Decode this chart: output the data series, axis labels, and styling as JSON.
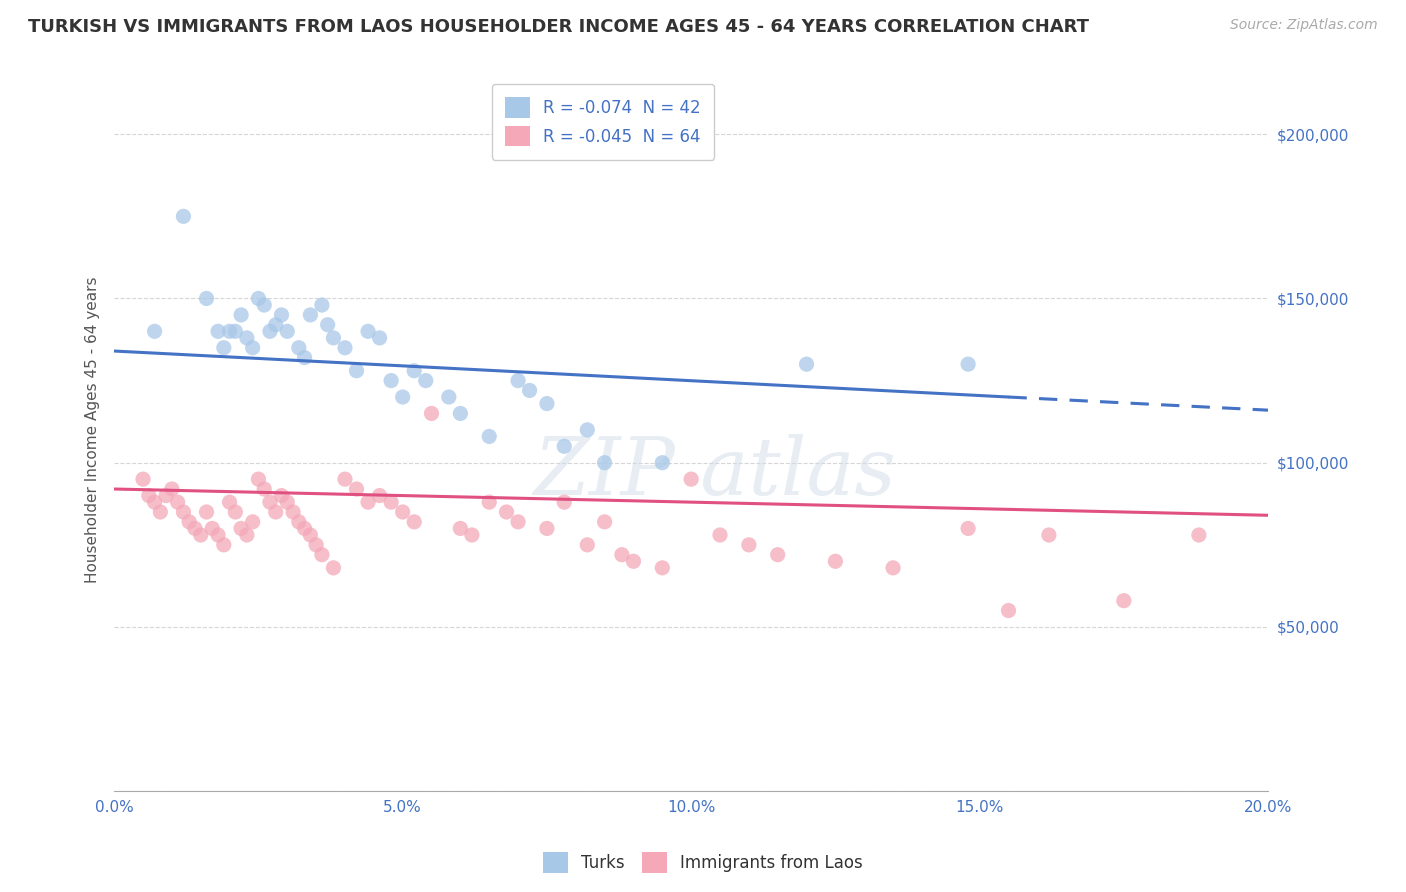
{
  "title": "TURKISH VS IMMIGRANTS FROM LAOS HOUSEHOLDER INCOME AGES 45 - 64 YEARS CORRELATION CHART",
  "source": "Source: ZipAtlas.com",
  "ylabel": "Householder Income Ages 45 - 64 years",
  "xlim": [
    0.0,
    0.2
  ],
  "ylim": [
    0,
    220000
  ],
  "yticks": [
    0,
    50000,
    100000,
    150000,
    200000
  ],
  "ytick_labels": [
    "",
    "$50,000",
    "$100,000",
    "$150,000",
    "$200,000"
  ],
  "xticks": [
    0.0,
    0.05,
    0.1,
    0.15,
    0.2
  ],
  "xtick_labels": [
    "0.0%",
    "5.0%",
    "10.0%",
    "15.0%",
    "20.0%"
  ],
  "legend_turks": "R = -0.074  N = 42",
  "legend_laos": "R = -0.045  N = 64",
  "legend_label_turks": "Turks",
  "legend_label_laos": "Immigrants from Laos",
  "color_turks": "#a8c8e8",
  "color_laos": "#f4a8b8",
  "color_turks_line": "#4472c4",
  "color_laos_line": "#e05080",
  "color_text": "#4472c4",
  "background_color": "#ffffff",
  "grid_color": "#cccccc",
  "R_turks": -0.074,
  "R_laos": -0.045,
  "N_turks": 42,
  "N_laos": 64,
  "turks_x": [
    0.007,
    0.012,
    0.016,
    0.018,
    0.019,
    0.02,
    0.021,
    0.022,
    0.023,
    0.024,
    0.025,
    0.026,
    0.027,
    0.028,
    0.029,
    0.03,
    0.032,
    0.033,
    0.034,
    0.036,
    0.037,
    0.038,
    0.04,
    0.042,
    0.044,
    0.046,
    0.048,
    0.05,
    0.052,
    0.054,
    0.058,
    0.06,
    0.065,
    0.07,
    0.072,
    0.075,
    0.078,
    0.082,
    0.085,
    0.095,
    0.12,
    0.148
  ],
  "turks_y": [
    140000,
    175000,
    150000,
    140000,
    135000,
    140000,
    140000,
    145000,
    138000,
    135000,
    150000,
    148000,
    140000,
    142000,
    145000,
    140000,
    135000,
    132000,
    145000,
    148000,
    142000,
    138000,
    135000,
    128000,
    140000,
    138000,
    125000,
    120000,
    128000,
    125000,
    120000,
    115000,
    108000,
    125000,
    122000,
    118000,
    105000,
    110000,
    100000,
    100000,
    130000,
    130000
  ],
  "laos_x": [
    0.005,
    0.006,
    0.007,
    0.008,
    0.009,
    0.01,
    0.011,
    0.012,
    0.013,
    0.014,
    0.015,
    0.016,
    0.017,
    0.018,
    0.019,
    0.02,
    0.021,
    0.022,
    0.023,
    0.024,
    0.025,
    0.026,
    0.027,
    0.028,
    0.029,
    0.03,
    0.031,
    0.032,
    0.033,
    0.034,
    0.035,
    0.036,
    0.038,
    0.04,
    0.042,
    0.044,
    0.046,
    0.048,
    0.05,
    0.052,
    0.055,
    0.06,
    0.062,
    0.065,
    0.068,
    0.07,
    0.075,
    0.078,
    0.082,
    0.085,
    0.088,
    0.09,
    0.095,
    0.1,
    0.105,
    0.11,
    0.115,
    0.125,
    0.135,
    0.148,
    0.155,
    0.162,
    0.175,
    0.188
  ],
  "laos_y": [
    95000,
    90000,
    88000,
    85000,
    90000,
    92000,
    88000,
    85000,
    82000,
    80000,
    78000,
    85000,
    80000,
    78000,
    75000,
    88000,
    85000,
    80000,
    78000,
    82000,
    95000,
    92000,
    88000,
    85000,
    90000,
    88000,
    85000,
    82000,
    80000,
    78000,
    75000,
    72000,
    68000,
    95000,
    92000,
    88000,
    90000,
    88000,
    85000,
    82000,
    115000,
    80000,
    78000,
    88000,
    85000,
    82000,
    80000,
    88000,
    75000,
    82000,
    72000,
    70000,
    68000,
    95000,
    78000,
    75000,
    72000,
    70000,
    68000,
    80000,
    55000,
    78000,
    58000,
    78000
  ],
  "turk_line_x0": 0.0,
  "turk_line_y0": 134000,
  "turk_line_x1": 0.155,
  "turk_line_y1": 120000,
  "turk_line_x2": 0.2,
  "turk_line_y2": 116000,
  "laos_line_x0": 0.0,
  "laos_line_y0": 92000,
  "laos_line_x1": 0.2,
  "laos_line_y1": 84000
}
